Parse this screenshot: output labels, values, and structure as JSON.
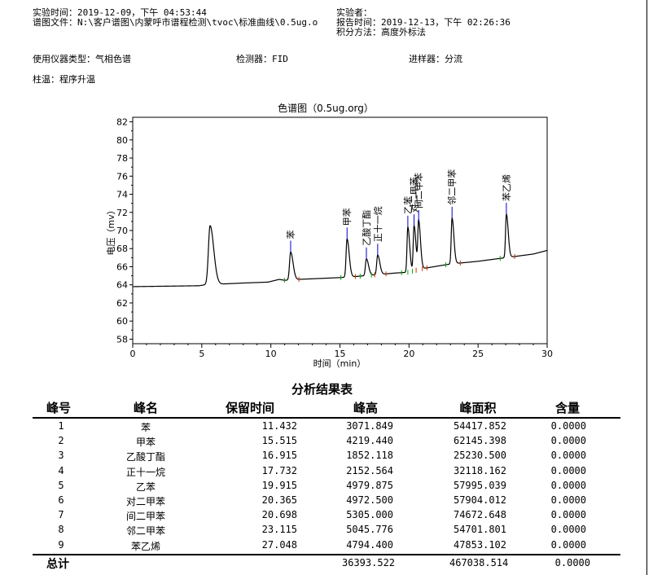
{
  "header": {
    "experiment_time": "实验时间：2019-12-09，下午 04:53:44",
    "chromatogram_file": "谱图文件：N:\\客户谱图\\内蒙呼市谱程检测\\tvoc\\标准曲线\\0.5ug.o",
    "experimenter": "实验者：",
    "report_time": "报告时间：2019-12-13，下午 02:26:36",
    "integration_method": "积分方法：高度外标法",
    "instrument_type": "使用仪器类型：气相色谱",
    "detector": "检测器：FID",
    "injector": "进样器：分流",
    "column_temp": "柱温：程序升温"
  },
  "chart_data": {
    "type": "line",
    "title": "色谱图（0.5ug.org）",
    "xlabel": "时间（min）",
    "ylabel": "电压（mv）",
    "xlim": [
      0,
      30
    ],
    "ylim": [
      57.5,
      82.5
    ],
    "xticks": [
      "0",
      "5",
      "10",
      "15",
      "20",
      "25",
      "30"
    ],
    "yticks": [
      "58",
      "60",
      "62",
      "64",
      "66",
      "68",
      "70",
      "72",
      "74",
      "76",
      "78",
      "80",
      "82"
    ],
    "baseline": [
      [
        0,
        63.8
      ],
      [
        4.8,
        63.9
      ],
      [
        5.2,
        64.0
      ],
      [
        8.0,
        64.2
      ],
      [
        9.8,
        64.3
      ],
      [
        10.6,
        64.6
      ],
      [
        11.0,
        64.5
      ],
      [
        12.0,
        64.6
      ],
      [
        15.0,
        64.8
      ],
      [
        16.0,
        64.9
      ],
      [
        19.0,
        65.3
      ],
      [
        20.0,
        65.4
      ],
      [
        21.0,
        65.8
      ],
      [
        23.0,
        66.3
      ],
      [
        25.0,
        66.6
      ],
      [
        27.0,
        67.0
      ],
      [
        28.0,
        67.2
      ],
      [
        29.0,
        67.4
      ],
      [
        30.0,
        67.8
      ]
    ],
    "peaks": [
      {
        "name": "",
        "time": 5.6,
        "height": 6.5,
        "width": 0.12
      },
      {
        "name": "苯",
        "time": 11.432,
        "height": 3.07,
        "width": 0.08
      },
      {
        "name": "甲苯",
        "time": 15.515,
        "height": 4.22,
        "width": 0.07
      },
      {
        "name": "乙酸丁酯",
        "time": 16.915,
        "height": 1.85,
        "width": 0.07
      },
      {
        "name": "正十一烷",
        "time": 17.732,
        "height": 2.15,
        "width": 0.07
      },
      {
        "name": "乙苯",
        "time": 19.915,
        "height": 4.98,
        "width": 0.06
      },
      {
        "name": "对二甲苯",
        "time": 20.365,
        "height": 4.97,
        "width": 0.06
      },
      {
        "name": "间二甲苯",
        "time": 20.698,
        "height": 5.31,
        "width": 0.06
      },
      {
        "name": "邻二甲苯",
        "time": 23.115,
        "height": 5.05,
        "width": 0.06
      },
      {
        "name": "苯乙烯",
        "time": 27.048,
        "height": 4.79,
        "width": 0.06
      }
    ]
  },
  "results": {
    "title": "分析结果表",
    "headers": [
      "峰号",
      "峰名",
      "保留时间",
      "峰高",
      "峰面积",
      "含量"
    ],
    "rows": [
      [
        "1",
        "苯",
        "11.432",
        "3071.849",
        "54417.852",
        "0.0000"
      ],
      [
        "2",
        "甲苯",
        "15.515",
        "4219.440",
        "62145.398",
        "0.0000"
      ],
      [
        "3",
        "乙酸丁酯",
        "16.915",
        "1852.118",
        "25230.500",
        "0.0000"
      ],
      [
        "4",
        "正十一烷",
        "17.732",
        "2152.564",
        "32118.162",
        "0.0000"
      ],
      [
        "5",
        "乙苯",
        "19.915",
        "4979.875",
        "57995.039",
        "0.0000"
      ],
      [
        "6",
        "对二甲苯",
        "20.365",
        "4972.500",
        "57904.012",
        "0.0000"
      ],
      [
        "7",
        "间二甲苯",
        "20.698",
        "5305.000",
        "74672.648",
        "0.0000"
      ],
      [
        "8",
        "邻二甲苯",
        "23.115",
        "5045.776",
        "54701.801",
        "0.0000"
      ],
      [
        "9",
        "苯乙烯",
        "27.048",
        "4794.400",
        "47853.102",
        "0.0000"
      ]
    ],
    "total_label": "总计",
    "total_height": "36393.522",
    "total_area": "467038.514",
    "total_content": "0.0000"
  },
  "colors": {
    "trace": "#000000",
    "peak_marker": "#0000cc",
    "baseline_mark": "#cc3300",
    "tick_mark": "#00aa00"
  }
}
